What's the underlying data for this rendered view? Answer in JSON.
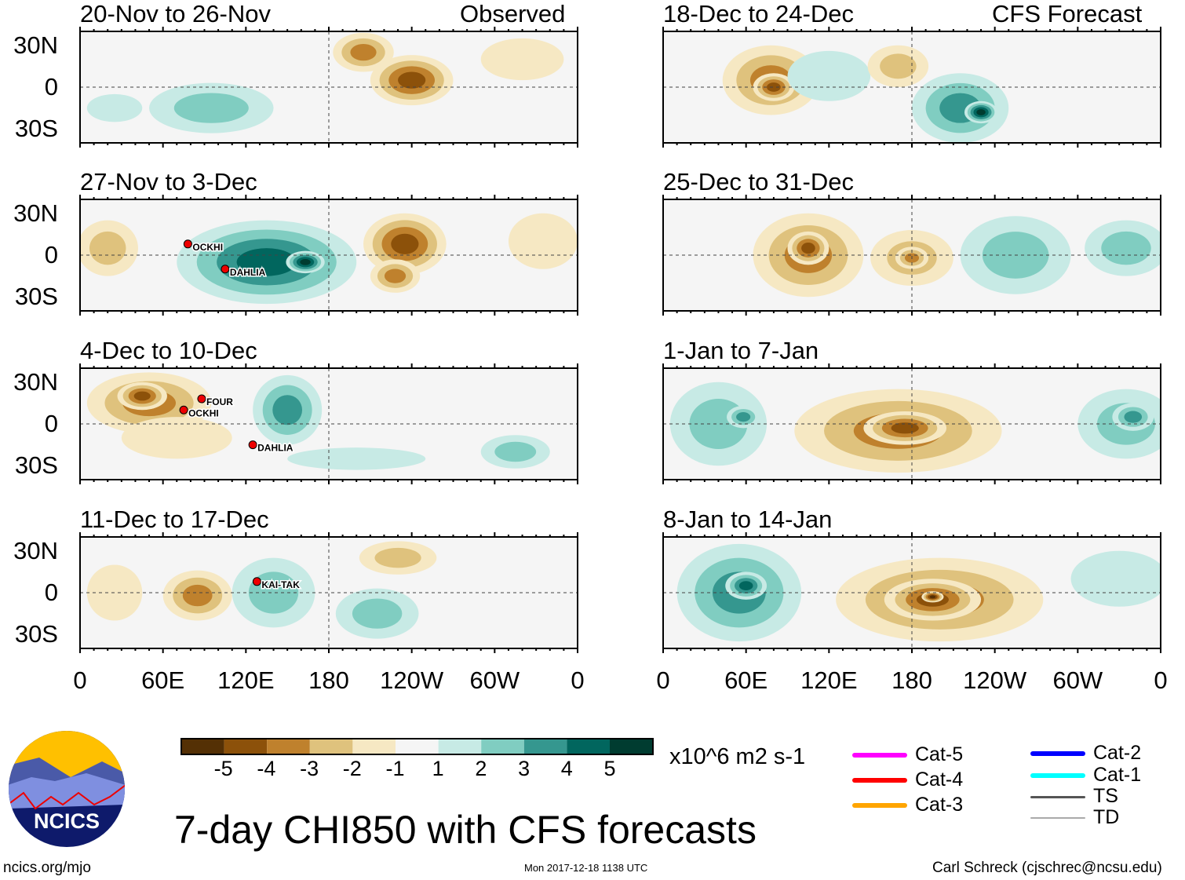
{
  "title": "7-day CHI850 with CFS forecasts",
  "logo_text": "NCICS",
  "footer": {
    "left": "ncics.org/mjo",
    "center": "Mon 2017-12-18 1138 UTC",
    "right": "Carl Schreck (cjschrec@ncsu.edu)"
  },
  "column_labels": {
    "left": "Observed",
    "right": "CFS Forecast"
  },
  "lat_labels": [
    "30N",
    "0",
    "30S"
  ],
  "lon_labels": [
    "0",
    "60E",
    "120E",
    "180",
    "120W",
    "60W",
    "0"
  ],
  "colorbar": {
    "units": "x10^6 m2 s-1",
    "tick_labels": [
      "-5",
      "-4",
      "-3",
      "-2",
      "-1",
      "1",
      "2",
      "3",
      "4",
      "5"
    ],
    "colors": [
      "#543005",
      "#8c510a",
      "#bf812d",
      "#dfc27d",
      "#f6e8c3",
      "#f5f5f5",
      "#c7eae5",
      "#80cdc1",
      "#35978f",
      "#01665e",
      "#003c30"
    ]
  },
  "legend": [
    {
      "label": "Cat-5",
      "color": "#ff00ff"
    },
    {
      "label": "Cat-4",
      "color": "#ff0000"
    },
    {
      "label": "Cat-3",
      "color": "#ffa500"
    },
    {
      "label": "Cat-2",
      "color": "#0000ff"
    },
    {
      "label": "Cat-1",
      "color": "#00ffff"
    },
    {
      "label": "TS",
      "color": "#555555"
    },
    {
      "label": "TD",
      "color": "#aaaaaa"
    }
  ],
  "chart_data": [
    {
      "type": "heatmap",
      "title": "20-Nov to 26-Nov",
      "column": "Observed",
      "features": [
        [
          95,
          -15,
          45,
          18,
          2
        ],
        [
          205,
          25,
          22,
          14,
          -3
        ],
        [
          240,
          5,
          30,
          18,
          -4
        ],
        [
          320,
          20,
          30,
          15,
          -1
        ],
        [
          25,
          -15,
          20,
          10,
          1
        ]
      ],
      "storms": []
    },
    {
      "type": "heatmap",
      "title": "27-Nov to 3-Dec",
      "column": "Observed",
      "features": [
        [
          135,
          -5,
          65,
          30,
          4
        ],
        [
          163,
          -5,
          14,
          8,
          5
        ],
        [
          235,
          8,
          30,
          22,
          -4
        ],
        [
          228,
          -15,
          18,
          12,
          -3
        ],
        [
          20,
          5,
          22,
          20,
          -2
        ],
        [
          335,
          10,
          25,
          20,
          -1
        ]
      ],
      "storms": [
        {
          "name": "OCKHI",
          "lon": 78,
          "lat": 8
        },
        {
          "name": "DAHLIA",
          "lon": 105,
          "lat": -10
        }
      ]
    },
    {
      "type": "heatmap",
      "title": "4-Dec to 10-Dec",
      "column": "Observed",
      "features": [
        [
          50,
          15,
          45,
          22,
          -3
        ],
        [
          45,
          20,
          18,
          10,
          -4
        ],
        [
          70,
          -10,
          40,
          15,
          -1
        ],
        [
          150,
          10,
          25,
          25,
          3
        ],
        [
          315,
          -20,
          25,
          12,
          2
        ],
        [
          200,
          -25,
          50,
          8,
          1
        ]
      ],
      "storms": [
        {
          "name": "OCKHI",
          "lon": 75,
          "lat": 10
        },
        {
          "name": "FOUR",
          "lon": 88,
          "lat": 18
        },
        {
          "name": "DAHLIA",
          "lon": 125,
          "lat": -15
        }
      ]
    },
    {
      "type": "heatmap",
      "title": "11-Dec to 17-Dec",
      "column": "Observed",
      "features": [
        [
          85,
          -2,
          25,
          18,
          -3
        ],
        [
          140,
          0,
          30,
          25,
          2
        ],
        [
          215,
          -15,
          30,
          18,
          2
        ],
        [
          230,
          25,
          28,
          12,
          -2
        ],
        [
          25,
          0,
          20,
          20,
          -1
        ]
      ],
      "storms": [
        {
          "name": "KAI-TAK",
          "lon": 128,
          "lat": 8
        }
      ]
    },
    {
      "type": "heatmap",
      "title": "18-Dec to 24-Dec",
      "column": "CFS Forecast",
      "features": [
        [
          78,
          5,
          35,
          25,
          -3
        ],
        [
          80,
          0,
          15,
          10,
          -4
        ],
        [
          120,
          8,
          30,
          18,
          1
        ],
        [
          215,
          -15,
          35,
          25,
          3
        ],
        [
          230,
          -18,
          12,
          8,
          5
        ],
        [
          170,
          15,
          22,
          15,
          -2
        ]
      ],
      "storms": []
    },
    {
      "type": "heatmap",
      "title": "25-Dec to 31-Dec",
      "column": "CFS Forecast",
      "features": [
        [
          105,
          0,
          40,
          30,
          -3
        ],
        [
          105,
          5,
          15,
          12,
          -4
        ],
        [
          180,
          -2,
          30,
          20,
          -2
        ],
        [
          180,
          -2,
          12,
          8,
          -3
        ],
        [
          255,
          0,
          40,
          28,
          2
        ],
        [
          335,
          5,
          30,
          20,
          2
        ]
      ],
      "storms": []
    },
    {
      "type": "heatmap",
      "title": "1-Jan to 7-Jan",
      "column": "CFS Forecast",
      "features": [
        [
          40,
          0,
          35,
          30,
          2
        ],
        [
          58,
          5,
          12,
          8,
          3
        ],
        [
          170,
          -5,
          75,
          30,
          -3
        ],
        [
          175,
          -3,
          30,
          12,
          -4
        ],
        [
          335,
          0,
          35,
          25,
          2
        ],
        [
          340,
          5,
          15,
          10,
          3
        ]
      ],
      "storms": []
    },
    {
      "type": "heatmap",
      "title": "8-Jan to 14-Jan",
      "column": "CFS Forecast",
      "features": [
        [
          55,
          0,
          45,
          35,
          3
        ],
        [
          60,
          5,
          15,
          10,
          4
        ],
        [
          200,
          -5,
          75,
          30,
          -3
        ],
        [
          195,
          -5,
          35,
          15,
          -4
        ],
        [
          195,
          -3,
          8,
          4,
          -5
        ],
        [
          330,
          10,
          35,
          20,
          1
        ]
      ],
      "storms": []
    }
  ]
}
